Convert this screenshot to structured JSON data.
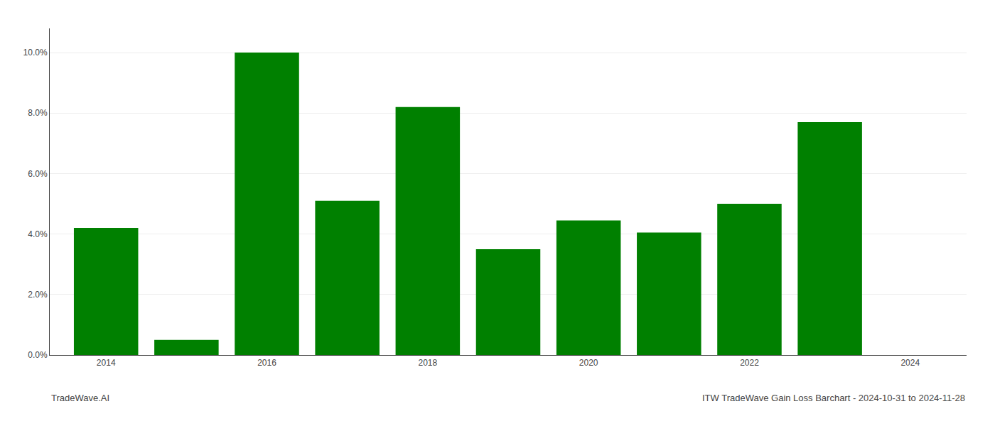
{
  "chart_data": {
    "type": "bar",
    "x": [
      2014,
      2015,
      2016,
      2017,
      2018,
      2019,
      2020,
      2021,
      2022,
      2023,
      2024
    ],
    "values": [
      0.042,
      0.005,
      0.1,
      0.051,
      0.082,
      0.035,
      0.0445,
      0.0405,
      0.05,
      0.077,
      null
    ],
    "color": "#008000",
    "xlim": [
      2013.3,
      2024.7
    ],
    "xticks": [
      2014,
      2016,
      2018,
      2020,
      2022,
      2024
    ],
    "ylim": [
      0,
      0.108
    ],
    "yticks": [
      {
        "value": 0.0,
        "label": "0.0%"
      },
      {
        "value": 0.02,
        "label": "2.0%"
      },
      {
        "value": 0.04,
        "label": "4.0%"
      },
      {
        "value": 0.06,
        "label": "6.0%"
      },
      {
        "value": 0.08,
        "label": "8.0%"
      },
      {
        "value": 0.1,
        "label": "10.0%"
      }
    ],
    "grid": "y",
    "annotations": [
      "TradeWave.AI",
      "ITW TradeWave Gain Loss Barchart - 2024-10-31 to 2024-11-28"
    ]
  }
}
